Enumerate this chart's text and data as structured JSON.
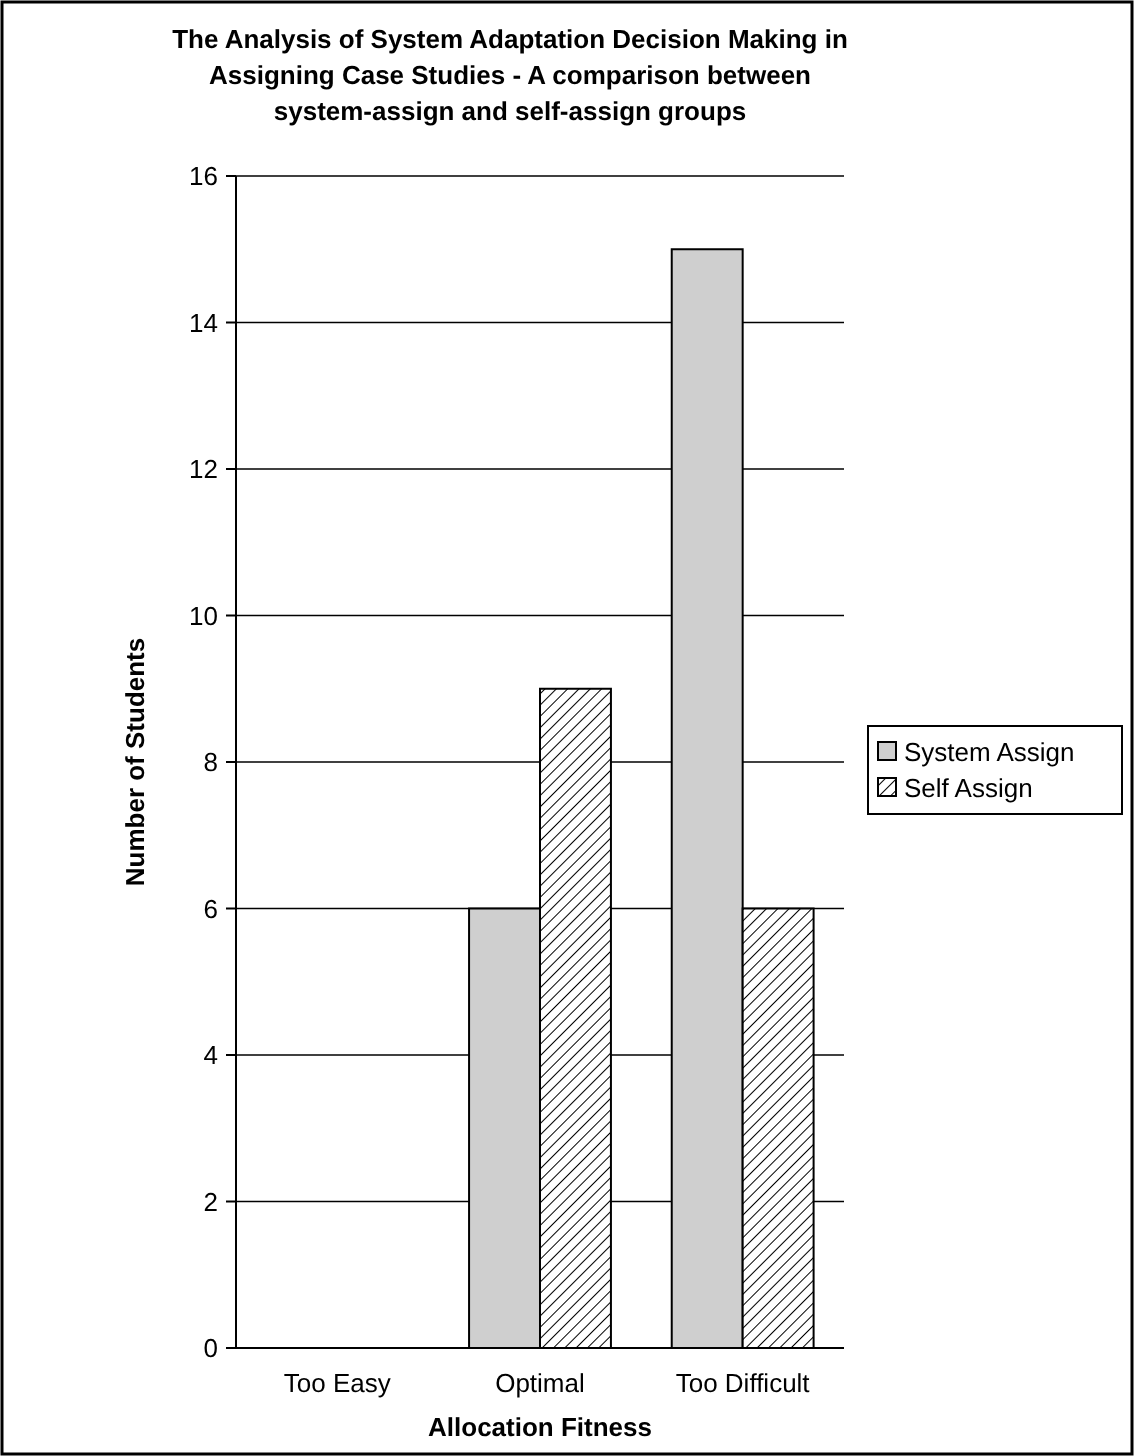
{
  "chart_data": {
    "type": "bar",
    "title": "The Analysis of System Adaptation Decision Making in Assigning Case Studies - A comparison between system-assign and self-assign groups",
    "xlabel": "Allocation Fitness",
    "ylabel": "Number of Students",
    "categories": [
      "Too Easy",
      "Optimal",
      "Too Difficult"
    ],
    "series": [
      {
        "name": "System Assign",
        "color": "#cfcfcf",
        "values": [
          0,
          6,
          15
        ]
      },
      {
        "name": "Self Assign",
        "color": "#000000",
        "values": [
          0,
          9,
          6
        ]
      }
    ],
    "ylim": [
      0,
      16
    ],
    "yticks": [
      0,
      2,
      4,
      6,
      8,
      10,
      12,
      14,
      16
    ],
    "grid": "y",
    "legend": "right"
  }
}
